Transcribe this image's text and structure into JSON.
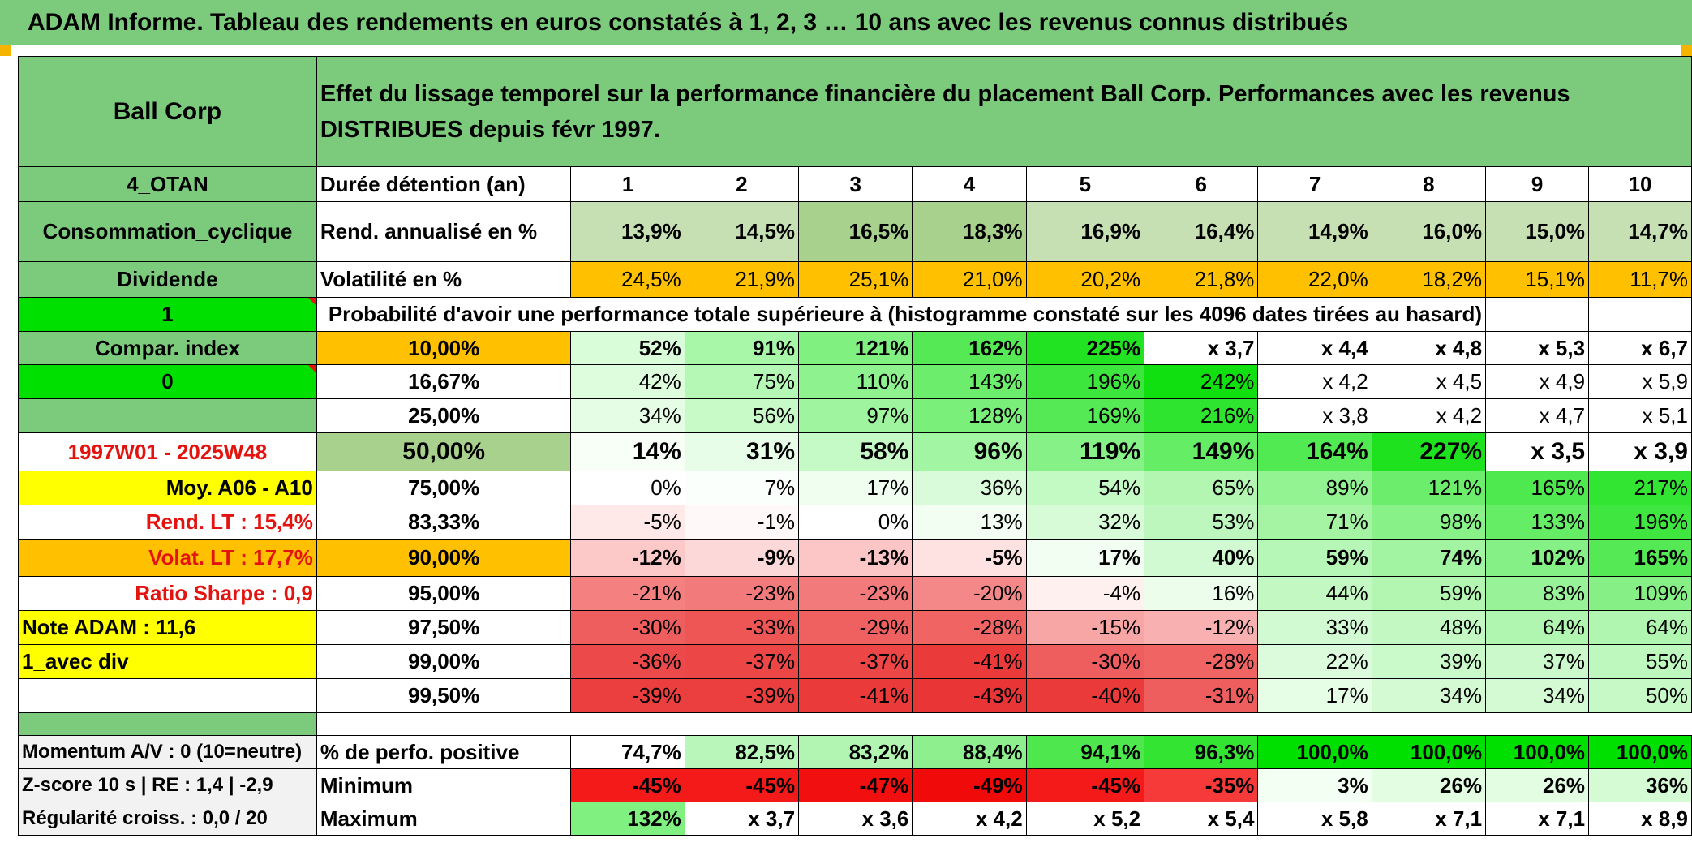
{
  "title": "ADAM Informe. Tableau des rendements en euros constatés à 1, 2, 3 … 10 ans avec les revenus connus distribués",
  "left": {
    "name": "Ball Corp",
    "code": "4_OTAN",
    "sector": "Consommation_cyclique",
    "dividend_label": "Dividende",
    "dividend_flag": "1",
    "compar_label": "Compar. index",
    "compar_flag": "0",
    "period": "1997W01 - 2025W48",
    "moy": "Moy. A06 - A10",
    "rend_lt": "Rend. LT :   15,4%",
    "volat_lt": "Volat. LT :   17,7%",
    "sharpe": "Ratio Sharpe :    0,9",
    "note": "Note ADAM : 11,6",
    "avec_div": "1_avec div",
    "momentum": "Momentum A/V : 0 (10=neutre)",
    "zscore": "Z-score 10 s | RE : 1,4 | -2,9",
    "regularite": "Régularité croiss. : 0,0 / 20"
  },
  "header_text": "Effet du lissage temporel sur la performance financière du placement Ball Corp. Performances avec les revenus DISTRIBUES depuis févr 1997.",
  "years_label": "Durée détention (an)",
  "years": [
    "1",
    "2",
    "3",
    "4",
    "5",
    "6",
    "7",
    "8",
    "9",
    "10"
  ],
  "rend": {
    "label": "Rend. annualisé en %",
    "values": [
      "13,9%",
      "14,5%",
      "16,5%",
      "18,3%",
      "16,9%",
      "16,4%",
      "14,9%",
      "16,0%",
      "15,0%",
      "14,7%"
    ]
  },
  "vol": {
    "label": "Volatilité en %",
    "values": [
      "24,5%",
      "21,9%",
      "25,1%",
      "21,0%",
      "20,2%",
      "21,8%",
      "22,0%",
      "18,2%",
      "15,1%",
      "11,7%"
    ]
  },
  "prob_title": "Probabilité d'avoir une performance totale supérieure à (histogramme constaté sur les 4096 dates tirées au hasard)",
  "prob_rows": [
    {
      "p": "10,00%",
      "values": [
        "52%",
        "91%",
        "121%",
        "162%",
        "225%",
        "x 3,7",
        "x 4,4",
        "x 4,8",
        "x 5,3",
        "x 6,7"
      ]
    },
    {
      "p": "16,67%",
      "values": [
        "42%",
        "75%",
        "110%",
        "143%",
        "196%",
        "242%",
        "x 4,2",
        "x 4,5",
        "x 4,9",
        "x 5,9"
      ]
    },
    {
      "p": "25,00%",
      "values": [
        "34%",
        "56%",
        "97%",
        "128%",
        "169%",
        "216%",
        "x 3,8",
        "x 4,2",
        "x 4,7",
        "x 5,1"
      ]
    },
    {
      "p": "50,00%",
      "values": [
        "14%",
        "31%",
        "58%",
        "96%",
        "119%",
        "149%",
        "164%",
        "227%",
        "x 3,5",
        "x 3,9"
      ]
    },
    {
      "p": "75,00%",
      "values": [
        "0%",
        "7%",
        "17%",
        "36%",
        "54%",
        "65%",
        "89%",
        "121%",
        "165%",
        "217%"
      ]
    },
    {
      "p": "83,33%",
      "values": [
        "-5%",
        "-1%",
        "0%",
        "13%",
        "32%",
        "53%",
        "71%",
        "98%",
        "133%",
        "196%"
      ]
    },
    {
      "p": "90,00%",
      "values": [
        "-12%",
        "-9%",
        "-13%",
        "-5%",
        "17%",
        "40%",
        "59%",
        "74%",
        "102%",
        "165%"
      ]
    },
    {
      "p": "95,00%",
      "values": [
        "-21%",
        "-23%",
        "-23%",
        "-20%",
        "-4%",
        "16%",
        "44%",
        "59%",
        "83%",
        "109%"
      ]
    },
    {
      "p": "97,50%",
      "values": [
        "-30%",
        "-33%",
        "-29%",
        "-28%",
        "-15%",
        "-12%",
        "33%",
        "48%",
        "64%",
        "64%"
      ]
    },
    {
      "p": "99,00%",
      "values": [
        "-36%",
        "-37%",
        "-37%",
        "-41%",
        "-30%",
        "-28%",
        "22%",
        "39%",
        "37%",
        "55%"
      ]
    },
    {
      "p": "99,50%",
      "values": [
        "-39%",
        "-39%",
        "-41%",
        "-43%",
        "-40%",
        "-31%",
        "17%",
        "34%",
        "34%",
        "50%"
      ]
    }
  ],
  "pos": {
    "label": "% de perfo. positive",
    "values": [
      "74,7%",
      "82,5%",
      "83,2%",
      "88,4%",
      "94,1%",
      "96,3%",
      "100,0%",
      "100,0%",
      "100,0%",
      "100,0%"
    ]
  },
  "min": {
    "label": "Minimum",
    "values": [
      "-45%",
      "-45%",
      "-47%",
      "-49%",
      "-45%",
      "-35%",
      "3%",
      "26%",
      "26%",
      "36%"
    ]
  },
  "max": {
    "label": "Maximum",
    "values": [
      "132%",
      "x 3,7",
      "x 3,6",
      "x 4,2",
      "x 5,2",
      "x 5,4",
      "x 5,8",
      "x 7,1",
      "x 7,1",
      "x 8,9"
    ]
  },
  "colors": {
    "prob": [
      [
        "#d9fcd9",
        "#a8f7a8",
        "#80f080",
        "#55ea55",
        "#22e322",
        "#ffffff",
        "#ffffff",
        "#ffffff",
        "#ffffff",
        "#ffffff"
      ],
      [
        "#ddfddd",
        "#b5f8b5",
        "#8ef38e",
        "#6cee6c",
        "#3de63d",
        "#10df10",
        "#ffffff",
        "#ffffff",
        "#ffffff",
        "#ffffff"
      ],
      [
        "#e5fde5",
        "#c8fac8",
        "#9ff59f",
        "#7af07a",
        "#55ea55",
        "#2ee42e",
        "#ffffff",
        "#ffffff",
        "#ffffff",
        "#ffffff"
      ],
      [
        "#f7fff7",
        "#e7fde7",
        "#c5f9c5",
        "#a2f5a2",
        "#86f186",
        "#66ed66",
        "#52ea52",
        "#1fe21f",
        "#ffffff",
        "#ffffff"
      ],
      [
        "#ffffff",
        "#fbfffb",
        "#f0fef0",
        "#d9fbd9",
        "#c3f9c3",
        "#b2f6b2",
        "#93f393",
        "#6ced6c",
        "#4ee94e",
        "#33e533"
      ],
      [
        "#ffe8e8",
        "#fff8f8",
        "#ffffff",
        "#f3fef3",
        "#d7fbd7",
        "#bdf7bd",
        "#a4f4a4",
        "#88f188",
        "#66ed66",
        "#3fe63f"
      ],
      [
        "#fcc8c8",
        "#fdd8d8",
        "#fcc6c6",
        "#fee2e2",
        "#f2fef2",
        "#d2fad2",
        "#b6f6b6",
        "#a2f4a2",
        "#85f085",
        "#55ea55"
      ],
      [
        "#f48080",
        "#f37a7a",
        "#f37a7a",
        "#f48787",
        "#fff0f0",
        "#ecfdec",
        "#c3f8c3",
        "#b2f6b2",
        "#98f398",
        "#86f086"
      ],
      [
        "#ef5e5e",
        "#ee5656",
        "#ef6161",
        "#f06464",
        "#f7a5a5",
        "#f8b0b0",
        "#d2fad2",
        "#c3f8c3",
        "#b0f6b0",
        "#b0f6b0"
      ],
      [
        "#ec4a4a",
        "#ec4646",
        "#ec4646",
        "#ea3a3a",
        "#ef5e5e",
        "#f06464",
        "#dcfbdc",
        "#cafaca",
        "#ccf9cc",
        "#bff8bf"
      ],
      [
        "#eb3f3f",
        "#eb3f3f",
        "#ea3a3a",
        "#e93535",
        "#ea3a3a",
        "#ef5e5e",
        "#e6fde6",
        "#d3fad3",
        "#d3fad3",
        "#c6f9c6"
      ]
    ],
    "pos": [
      "#ffffff",
      "#b9f6b9",
      "#b2f5b2",
      "#8eef8e",
      "#4ee84e",
      "#33e433",
      "#00e000",
      "#00e000",
      "#00e000",
      "#00e000"
    ],
    "min": [
      "#f41a1a",
      "#f41a1a",
      "#f20f0f",
      "#f00a0a",
      "#f41a1a",
      "#f63a3a",
      "#f4fff4",
      "#e3fde3",
      "#e3fde3",
      "#d5fbd5"
    ],
    "max": [
      "#80f080",
      "#ffffff",
      "#ffffff",
      "#ffffff",
      "#ffffff",
      "#ffffff",
      "#ffffff",
      "#ffffff",
      "#ffffff",
      "#ffffff"
    ],
    "rend": [
      "#c6e0b4",
      "#c6e0b4",
      "#a9d18e",
      "#a9d18e",
      "#c6e0b4",
      "#c6e0b4",
      "#c6e0b4",
      "#c6e0b4",
      "#c6e0b4",
      "#c6e0b4"
    ],
    "vol": [
      "#ffc000",
      "#ffc000",
      "#ffc000",
      "#ffc000",
      "#ffc000",
      "#ffc000",
      "#ffc000",
      "#ffc000",
      "#ffc000",
      "#ffc000"
    ]
  }
}
